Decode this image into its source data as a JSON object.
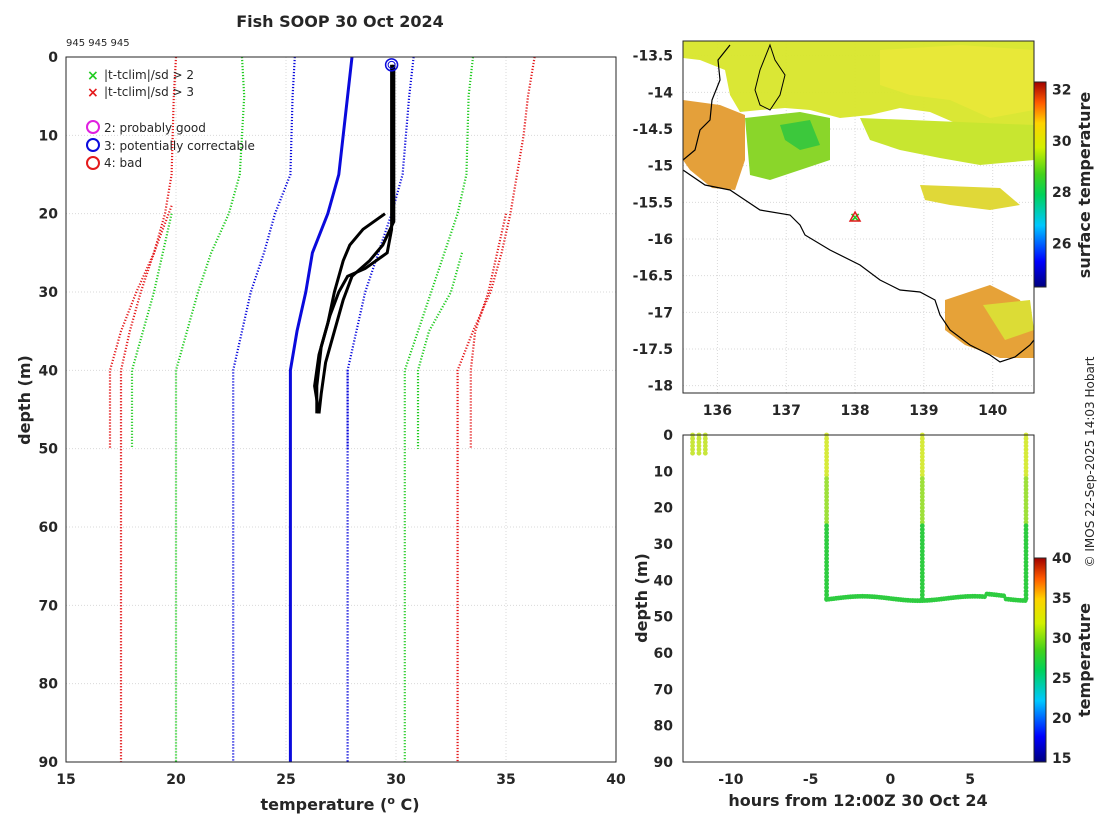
{
  "title": "Fish SOOP 30 Oct 2024",
  "id_line": "945 945 945",
  "credit": "© IMOS 22-Sep-2025 14:03 Hobart",
  "colors": {
    "red": "#e41a1c",
    "green": "#2ecc2e",
    "blue": "#0a0adc",
    "magenta": "#e020e0",
    "black": "#000000"
  },
  "legend": {
    "x_items": [
      {
        "label": "|t-tclim|/sd > 2",
        "color": "#22cc22"
      },
      {
        "label": "|t-tclim|/sd > 3",
        "color": "#e41a1c"
      }
    ],
    "o_items": [
      {
        "label": "2: probably good",
        "color": "#e020e0"
      },
      {
        "label": "3: potentially correctable",
        "color": "#0a0adc"
      },
      {
        "label": "4: bad",
        "color": "#e41a1c"
      }
    ]
  },
  "chart_data": [
    {
      "type": "line",
      "title": "Fish SOOP 30 Oct 2024",
      "xlabel": "temperature (o C)",
      "ylabel": "depth (m)",
      "xlim": [
        15,
        40
      ],
      "ylim": [
        0,
        90
      ],
      "y_reversed": true,
      "xticks": [
        15,
        20,
        25,
        30,
        35,
        40
      ],
      "yticks": [
        0,
        10,
        20,
        30,
        40,
        50,
        60,
        70,
        80,
        90
      ],
      "series": [
        {
          "name": "clim mean",
          "style": "solid",
          "color": "#0a0adc",
          "points": [
            [
              28.0,
              0
            ],
            [
              27.8,
              5
            ],
            [
              27.4,
              15
            ],
            [
              26.9,
              20
            ],
            [
              26.2,
              25
            ],
            [
              25.9,
              30
            ],
            [
              25.5,
              35
            ],
            [
              25.2,
              40
            ],
            [
              25.2,
              50
            ],
            [
              25.2,
              90
            ]
          ]
        },
        {
          "name": "clim -1sd",
          "style": "dotted",
          "color": "#0a0adc",
          "points": [
            [
              25.4,
              0
            ],
            [
              25.3,
              5
            ],
            [
              25.2,
              15
            ],
            [
              24.5,
              20
            ],
            [
              24.0,
              25
            ],
            [
              23.4,
              30
            ],
            [
              23.0,
              35
            ],
            [
              22.6,
              40
            ],
            [
              22.6,
              90
            ]
          ]
        },
        {
          "name": "clim +1sd",
          "style": "dotted",
          "color": "#0a0adc",
          "points": [
            [
              30.8,
              0
            ],
            [
              30.6,
              5
            ],
            [
              30.3,
              15
            ],
            [
              29.8,
              20
            ],
            [
              29.2,
              25
            ],
            [
              28.6,
              30
            ],
            [
              28.2,
              35
            ],
            [
              27.8,
              40
            ],
            [
              27.8,
              50
            ]
          ]
        },
        {
          "name": "clim -1sd b",
          "style": "dotted",
          "color": "#0a0adc",
          "points": [
            [
              27.8,
              40
            ],
            [
              27.8,
              90
            ]
          ]
        },
        {
          "name": "clim -2sd",
          "style": "dotted",
          "color": "#22cc22",
          "points": [
            [
              23.0,
              0
            ],
            [
              23.1,
              5
            ],
            [
              22.9,
              15
            ],
            [
              22.4,
              20
            ],
            [
              21.6,
              25
            ],
            [
              21.0,
              30
            ],
            [
              20.5,
              35
            ],
            [
              20.0,
              40
            ],
            [
              20.0,
              90
            ]
          ]
        },
        {
          "name": "clim +2sd",
          "style": "dotted",
          "color": "#22cc22",
          "points": [
            [
              33.5,
              0
            ],
            [
              33.3,
              5
            ],
            [
              33.2,
              15
            ],
            [
              32.8,
              20
            ],
            [
              32.2,
              25
            ],
            [
              31.6,
              30
            ],
            [
              31.0,
              35
            ],
            [
              30.4,
              40
            ],
            [
              30.4,
              90
            ]
          ]
        },
        {
          "name": "clim -2sd w",
          "style": "dotted",
          "color": "#22cc22",
          "points": [
            [
              19.8,
              20
            ],
            [
              19.0,
              30
            ],
            [
              18.5,
              35
            ],
            [
              18.0,
              40
            ],
            [
              18.0,
              50
            ]
          ]
        },
        {
          "name": "clim +2sd w",
          "style": "dotted",
          "color": "#22cc22",
          "points": [
            [
              33.0,
              25
            ],
            [
              32.5,
              30
            ],
            [
              31.5,
              35
            ],
            [
              31.0,
              40
            ],
            [
              31.0,
              50
            ]
          ]
        },
        {
          "name": "clim -3sd",
          "style": "dotted",
          "color": "#e41a1c",
          "points": [
            [
              20.0,
              0
            ],
            [
              19.9,
              5
            ],
            [
              19.8,
              15
            ],
            [
              19.5,
              20
            ],
            [
              19.0,
              25
            ],
            [
              18.4,
              30
            ],
            [
              17.9,
              35
            ],
            [
              17.5,
              40
            ],
            [
              17.5,
              90
            ]
          ]
        },
        {
          "name": "clim +3sd",
          "style": "dotted",
          "color": "#e41a1c",
          "points": [
            [
              36.3,
              0
            ],
            [
              36.0,
              5
            ],
            [
              35.8,
              10
            ],
            [
              35.5,
              15
            ],
            [
              35.2,
              20
            ],
            [
              34.8,
              25
            ],
            [
              34.3,
              30
            ],
            [
              33.5,
              35
            ],
            [
              32.8,
              40
            ],
            [
              32.8,
              90
            ]
          ]
        },
        {
          "name": "clim -3sd w",
          "style": "dotted",
          "color": "#e41a1c",
          "points": [
            [
              19.8,
              19
            ],
            [
              19.0,
              25
            ],
            [
              18.2,
              30
            ],
            [
              17.5,
              35
            ],
            [
              17.0,
              40
            ],
            [
              17.0,
              50
            ]
          ]
        },
        {
          "name": "clim +3sd w",
          "style": "dotted",
          "color": "#e41a1c",
          "points": [
            [
              35.0,
              20
            ],
            [
              34.6,
              25
            ],
            [
              34.2,
              30
            ],
            [
              33.6,
              35
            ],
            [
              33.4,
              40
            ],
            [
              33.4,
              50
            ]
          ]
        },
        {
          "name": "profile down",
          "style": "solid",
          "color": "#000000",
          "points": [
            [
              29.8,
              1
            ],
            [
              29.8,
              10
            ],
            [
              29.8,
              18
            ],
            [
              29.8,
              22
            ],
            [
              29.6,
              25
            ],
            [
              28.6,
              27
            ],
            [
              27.8,
              28
            ],
            [
              27.4,
              30
            ],
            [
              27.0,
              33
            ],
            [
              26.6,
              37
            ],
            [
              26.4,
              42
            ],
            [
              26.4,
              45.5
            ]
          ]
        },
        {
          "name": "profile up",
          "style": "solid",
          "color": "#000000",
          "points": [
            [
              26.5,
              45.5
            ],
            [
              26.6,
              43
            ],
            [
              26.8,
              39
            ],
            [
              27.2,
              35
            ],
            [
              27.6,
              31
            ],
            [
              28.0,
              28
            ],
            [
              28.8,
              26
            ],
            [
              29.4,
              24
            ],
            [
              29.9,
              21
            ],
            [
              29.9,
              15
            ],
            [
              29.9,
              1
            ]
          ]
        },
        {
          "name": "profile mid",
          "style": "solid",
          "color": "#000000",
          "points": [
            [
              29.5,
              20
            ],
            [
              28.5,
              22
            ],
            [
              27.9,
              24
            ],
            [
              27.6,
              26
            ],
            [
              27.2,
              30
            ],
            [
              26.9,
              34
            ],
            [
              26.5,
              38
            ],
            [
              26.3,
              42
            ],
            [
              26.5,
              45.5
            ]
          ]
        }
      ],
      "flag_marker": {
        "label": "3",
        "x": 29.8,
        "y": 1
      }
    },
    {
      "type": "heatmap",
      "title": "",
      "xlim": [
        135.5,
        140.6
      ],
      "ylim": [
        -18.1,
        -13.3
      ],
      "xticks": [
        136,
        137,
        138,
        139,
        140
      ],
      "yticks": [
        -13.5,
        -14,
        -14.5,
        -15,
        -15.5,
        -16,
        -16.5,
        -17,
        -17.5,
        -18
      ],
      "colorbar": {
        "label": "surface temperature",
        "ticks": [
          26,
          28,
          30,
          32
        ],
        "range": [
          24.3,
          32.3
        ]
      },
      "marker": {
        "x": 138.0,
        "y": -15.7
      }
    },
    {
      "type": "scatter",
      "xlabel": "hours from 12:00Z 30 Oct 24",
      "ylabel": "depth (m)",
      "xlim": [
        -13,
        9
      ],
      "ylim": [
        0,
        90
      ],
      "y_reversed": true,
      "xticks": [
        -10,
        -5,
        0,
        5
      ],
      "yticks": [
        0,
        10,
        20,
        30,
        40,
        50,
        60,
        70,
        80,
        90
      ],
      "colorbar": {
        "label": "temperature",
        "ticks": [
          15,
          20,
          25,
          30,
          35,
          40
        ],
        "range": [
          14.5,
          40
        ]
      },
      "casts": [
        -12.5,
        -12.1,
        -4,
        2,
        8.5
      ],
      "bottom_depth": 45
    }
  ]
}
